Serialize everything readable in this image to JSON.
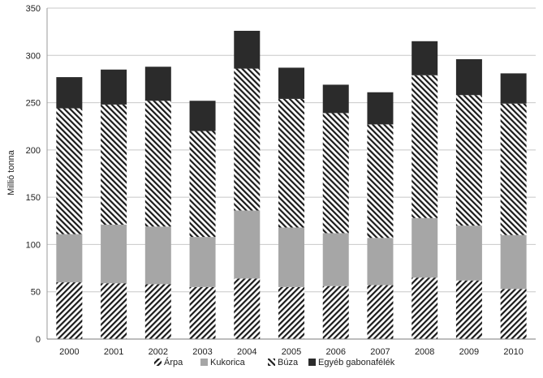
{
  "chart_data": {
    "type": "bar",
    "stacked": true,
    "categories": [
      "2000",
      "2001",
      "2002",
      "2003",
      "2004",
      "2005",
      "2006",
      "2007",
      "2008",
      "2009",
      "2010"
    ],
    "series": [
      {
        "name": "Árpa",
        "pattern": "forward-hatch",
        "color": "#1a1a1a",
        "values": [
          60,
          59,
          58,
          55,
          64,
          55,
          56,
          57,
          65,
          62,
          53
        ]
      },
      {
        "name": "Kukorica",
        "pattern": "solid",
        "color": "#a6a6a6",
        "values": [
          51,
          62,
          61,
          53,
          72,
          63,
          56,
          50,
          63,
          58,
          57
        ]
      },
      {
        "name": "Búza",
        "pattern": "back-hatch",
        "color": "#1a1a1a",
        "values": [
          133,
          127,
          133,
          112,
          150,
          136,
          127,
          120,
          151,
          138,
          139
        ]
      },
      {
        "name": "Egyéb gabonafélék",
        "pattern": "solid",
        "color": "#2b2b2b",
        "values": [
          33,
          37,
          36,
          32,
          40,
          33,
          30,
          34,
          36,
          38,
          32
        ]
      }
    ],
    "xlabel": "",
    "ylabel": "Millió tonna",
    "ylim": [
      0,
      350
    ],
    "yticks": [
      0,
      50,
      100,
      150,
      200,
      250,
      300,
      350
    ],
    "grid": "horizontal",
    "legend_position": "bottom"
  }
}
